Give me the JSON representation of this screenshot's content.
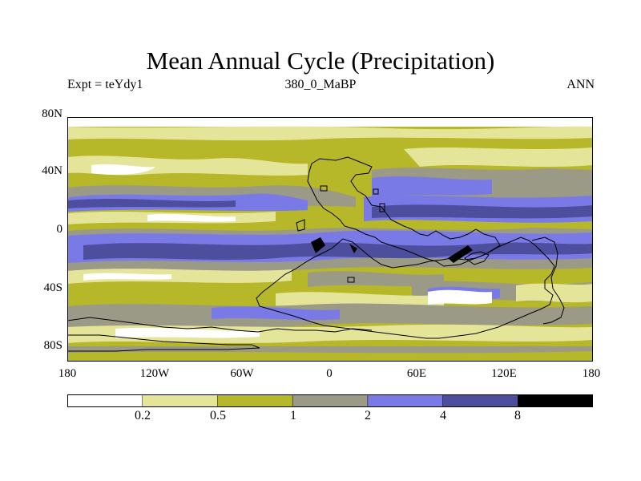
{
  "title": "Mean Annual Cycle (Precipitation)",
  "subtitle_left": "Expt = teYdy1",
  "subtitle_center": "380_0_MaBP",
  "subtitle_right": "ANN",
  "y_ticks": [
    "80N",
    "40N",
    "0",
    "40S",
    "80S"
  ],
  "x_ticks": [
    "180",
    "120W",
    "60W",
    "0",
    "60E",
    "120E",
    "180"
  ],
  "colorbar": {
    "levels": [
      "0.2",
      "0.5",
      "1",
      "2",
      "4",
      "8"
    ],
    "colors": [
      "#ffffff",
      "#e5e59a",
      "#b7b72a",
      "#9a9a86",
      "#7a7ae6",
      "#4e4e9e",
      "#000000"
    ]
  },
  "map": {
    "lat_range": [
      -90,
      90
    ],
    "lon_range": [
      -180,
      180
    ],
    "coastline_color": "#000000"
  }
}
